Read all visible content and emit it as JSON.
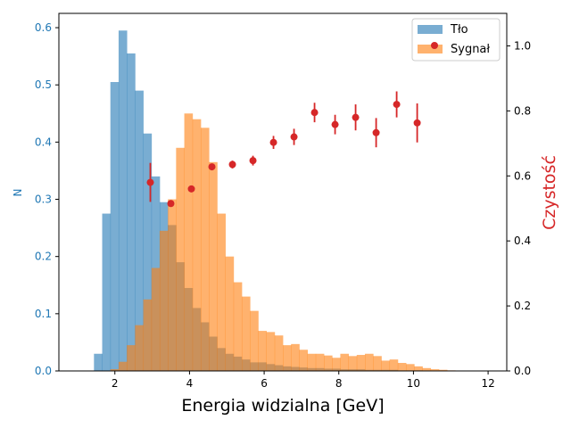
{
  "chart_data": {
    "type": "histogram+errorbar",
    "xlabel": "Energia widzialna [GeV]",
    "ylabel_left": "N",
    "ylabel_right": "Czystość",
    "xlim": [
      0.5,
      12.5
    ],
    "ylim_left": [
      0,
      0.625
    ],
    "ylim_right": [
      0,
      1.1
    ],
    "xticks": [
      2,
      4,
      6,
      8,
      10,
      12
    ],
    "yticks_left": [
      0.0,
      0.1,
      0.2,
      0.3,
      0.4,
      0.5,
      0.6
    ],
    "yticks_right": [
      0.0,
      0.2,
      0.4,
      0.6,
      0.8,
      1.0
    ],
    "legend": {
      "position": "top-right",
      "entries": [
        "Tło",
        "Sygnał"
      ]
    },
    "bin_width": 0.22,
    "series": [
      {
        "name": "Tło",
        "kind": "histogram",
        "color": "#1f77b4",
        "bins": [
          [
            1.44,
            0.03
          ],
          [
            1.66,
            0.275
          ],
          [
            1.88,
            0.505
          ],
          [
            2.1,
            0.595
          ],
          [
            2.32,
            0.555
          ],
          [
            2.54,
            0.49
          ],
          [
            2.76,
            0.415
          ],
          [
            2.98,
            0.34
          ],
          [
            3.2,
            0.295
          ],
          [
            3.42,
            0.255
          ],
          [
            3.64,
            0.19
          ],
          [
            3.86,
            0.145
          ],
          [
            4.08,
            0.11
          ],
          [
            4.3,
            0.085
          ],
          [
            4.52,
            0.06
          ],
          [
            4.74,
            0.04
          ],
          [
            4.96,
            0.03
          ],
          [
            5.18,
            0.025
          ],
          [
            5.4,
            0.02
          ],
          [
            5.62,
            0.015
          ],
          [
            5.84,
            0.015
          ],
          [
            6.06,
            0.012
          ],
          [
            6.28,
            0.01
          ],
          [
            6.5,
            0.008
          ],
          [
            6.72,
            0.007
          ],
          [
            6.94,
            0.006
          ],
          [
            7.16,
            0.005
          ],
          [
            7.38,
            0.005
          ],
          [
            7.6,
            0.004
          ],
          [
            7.82,
            0.004
          ],
          [
            8.04,
            0.003
          ],
          [
            8.26,
            0.003
          ],
          [
            8.48,
            0.003
          ],
          [
            8.7,
            0.002
          ],
          [
            8.92,
            0.002
          ],
          [
            9.14,
            0.002
          ],
          [
            9.36,
            0.002
          ],
          [
            9.58,
            0.001
          ],
          [
            9.8,
            0.001
          ],
          [
            10.02,
            0.001
          ]
        ]
      },
      {
        "name": "Sygnał",
        "kind": "histogram",
        "color": "#ff7f0e",
        "bins": [
          [
            1.88,
            0.003
          ],
          [
            2.1,
            0.016
          ],
          [
            2.32,
            0.045
          ],
          [
            2.54,
            0.08
          ],
          [
            2.76,
            0.125
          ],
          [
            2.98,
            0.18
          ],
          [
            3.2,
            0.245
          ],
          [
            3.42,
            0.3
          ],
          [
            3.64,
            0.39
          ],
          [
            3.86,
            0.45
          ],
          [
            4.08,
            0.44
          ],
          [
            4.3,
            0.425
          ],
          [
            4.52,
            0.365
          ],
          [
            4.74,
            0.275
          ],
          [
            4.96,
            0.2
          ],
          [
            5.18,
            0.155
          ],
          [
            5.4,
            0.13
          ],
          [
            5.62,
            0.105
          ],
          [
            5.84,
            0.07
          ],
          [
            6.06,
            0.068
          ],
          [
            6.28,
            0.062
          ],
          [
            6.5,
            0.045
          ],
          [
            6.72,
            0.047
          ],
          [
            6.94,
            0.037
          ],
          [
            7.16,
            0.03
          ],
          [
            7.38,
            0.03
          ],
          [
            7.6,
            0.027
          ],
          [
            7.82,
            0.023
          ],
          [
            8.04,
            0.03
          ],
          [
            8.26,
            0.026
          ],
          [
            8.48,
            0.028
          ],
          [
            8.7,
            0.03
          ],
          [
            8.92,
            0.026
          ],
          [
            9.14,
            0.018
          ],
          [
            9.36,
            0.02
          ],
          [
            9.58,
            0.014
          ],
          [
            9.8,
            0.012
          ],
          [
            10.02,
            0.008
          ],
          [
            10.24,
            0.005
          ],
          [
            10.46,
            0.003
          ],
          [
            10.68,
            0.002
          ],
          [
            10.9,
            0.001
          ]
        ]
      },
      {
        "name": "Czystość",
        "kind": "errorbar",
        "axis": "right",
        "color": "#d62728",
        "points": [
          {
            "x": 2.95,
            "y": 0.58,
            "err": 0.06
          },
          {
            "x": 3.5,
            "y": 0.515,
            "err": 0.005
          },
          {
            "x": 4.05,
            "y": 0.56,
            "err": 0.005
          },
          {
            "x": 4.6,
            "y": 0.628,
            "err": 0.005
          },
          {
            "x": 5.15,
            "y": 0.635,
            "err": 0.012
          },
          {
            "x": 5.7,
            "y": 0.647,
            "err": 0.015
          },
          {
            "x": 6.25,
            "y": 0.703,
            "err": 0.02
          },
          {
            "x": 6.8,
            "y": 0.72,
            "err": 0.025
          },
          {
            "x": 7.35,
            "y": 0.795,
            "err": 0.03
          },
          {
            "x": 7.9,
            "y": 0.758,
            "err": 0.03
          },
          {
            "x": 8.45,
            "y": 0.78,
            "err": 0.04
          },
          {
            "x": 9.0,
            "y": 0.733,
            "err": 0.045
          },
          {
            "x": 9.55,
            "y": 0.82,
            "err": 0.04
          },
          {
            "x": 10.1,
            "y": 0.763,
            "err": 0.06
          }
        ]
      }
    ]
  }
}
